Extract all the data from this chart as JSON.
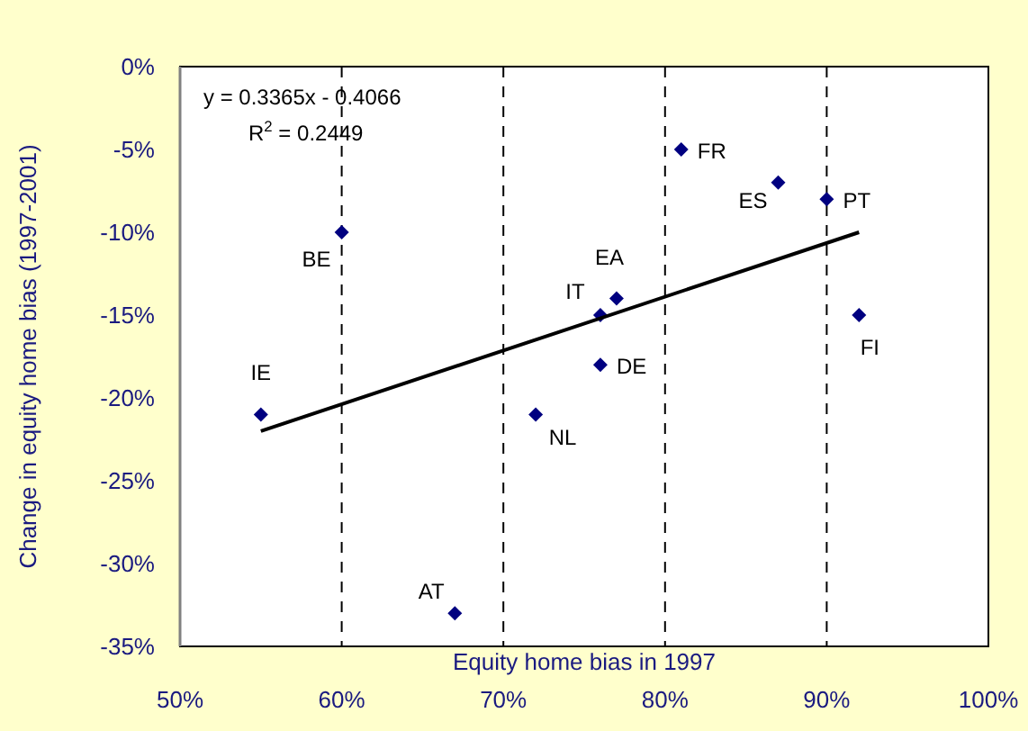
{
  "chart_data": {
    "type": "scatter",
    "xlabel": "Equity home bias in 1997",
    "ylabel": "Change in equity home bias (1997-2001)",
    "xlim": [
      0.5,
      1.0
    ],
    "ylim": [
      -0.35,
      0
    ],
    "xticks": [
      {
        "value": 0.5,
        "label": "50%"
      },
      {
        "value": 0.6,
        "label": "60%"
      },
      {
        "value": 0.7,
        "label": "70%"
      },
      {
        "value": 0.8,
        "label": "80%"
      },
      {
        "value": 0.9,
        "label": "90%"
      },
      {
        "value": 1.0,
        "label": "100%"
      }
    ],
    "yticks": [
      {
        "value": -0.35,
        "label": "-35%"
      },
      {
        "value": -0.3,
        "label": "-30%"
      },
      {
        "value": -0.25,
        "label": "-25%"
      },
      {
        "value": -0.2,
        "label": "-20%"
      },
      {
        "value": -0.15,
        "label": "-15%"
      },
      {
        "value": -0.1,
        "label": "-10%"
      },
      {
        "value": -0.05,
        "label": "-5%"
      },
      {
        "value": 0,
        "label": "0%"
      }
    ],
    "grid": "x",
    "series": [
      {
        "marker": "diamond",
        "color": "#000080",
        "x": [
          0.55,
          0.6,
          0.67,
          0.72,
          0.76,
          0.77,
          0.76,
          0.81,
          0.87,
          0.9,
          0.92
        ],
        "values": [
          -0.21,
          -0.1,
          -0.33,
          -0.21,
          -0.15,
          -0.14,
          -0.18,
          -0.05,
          -0.07,
          -0.08,
          -0.15
        ]
      },
      {
        "type": "line",
        "color": "#000000",
        "x": [
          0.55,
          0.92
        ],
        "values": [
          -0.22,
          -0.1
        ]
      }
    ],
    "annotations": [
      "y = 0.3365x - 0.4066",
      "R$^{2}$ = 0.2449",
      {
        "text": "IE",
        "x": 0.55,
        "y": -0.21
      },
      {
        "text": "BE",
        "x": 0.6,
        "y": -0.1
      },
      {
        "text": "AT",
        "x": 0.67,
        "y": -0.33
      },
      {
        "text": "NL",
        "x": 0.72,
        "y": -0.21
      },
      {
        "text": "IT",
        "x": 0.76,
        "y": -0.15
      },
      {
        "text": "EA",
        "x": 0.77,
        "y": -0.14
      },
      {
        "text": "DE",
        "x": 0.76,
        "y": -0.18
      },
      {
        "text": "FR",
        "x": 0.81,
        "y": -0.05
      },
      {
        "text": "ES",
        "x": 0.87,
        "y": -0.07
      },
      {
        "text": "PT",
        "x": 0.9,
        "y": -0.08
      },
      {
        "text": "FI",
        "x": 0.92,
        "y": -0.15
      }
    ]
  }
}
